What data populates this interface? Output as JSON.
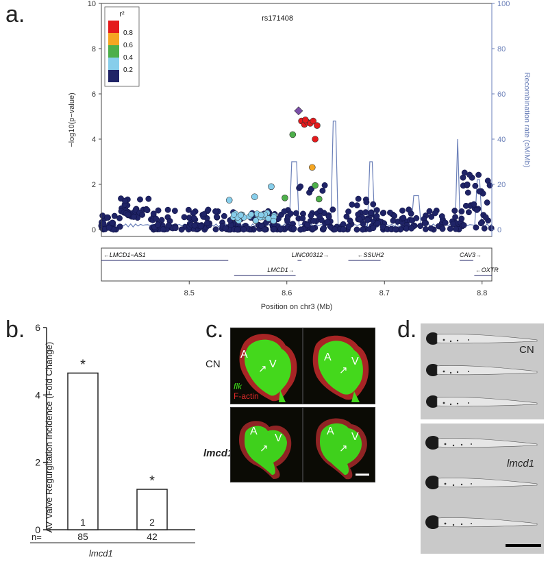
{
  "panels": {
    "a": "a.",
    "b": "b.",
    "c": "c.",
    "d": "d."
  },
  "chart_data": [
    {
      "panel": "a",
      "type": "scatter",
      "title": "rs171408",
      "xlabel": "Position on chr3 (Mb)",
      "ylabel": "−log10(p−value)",
      "ylabel_right": "Recombination rate (cM/Mb)",
      "xlim": [
        8.41,
        8.81
      ],
      "ylim": [
        0,
        10
      ],
      "ylim_right": [
        0,
        100
      ],
      "x_ticks": [
        "8.5",
        "8.6",
        "8.7",
        "8.8"
      ],
      "y_ticks": [
        "0",
        "2",
        "4",
        "6",
        "8",
        "10"
      ],
      "y_right_ticks": [
        "0",
        "20",
        "40",
        "60",
        "80",
        "100"
      ],
      "legend": {
        "title": "r²",
        "placement": "top-left",
        "bins": [
          {
            "label": "0.8",
            "color": "#e41a1c"
          },
          {
            "label": "0.6",
            "color": "#f5a623"
          },
          {
            "label": "0.4",
            "color": "#4daf4a"
          },
          {
            "label": "0.2",
            "color": "#87ceeb"
          },
          {
            "label": "",
            "color": "#1f2366"
          }
        ]
      },
      "lead_snp": {
        "x": 8.612,
        "y": 5.25,
        "color": "#7b4fa8"
      },
      "highlighted_points": [
        {
          "x": 8.615,
          "y": 4.8,
          "r2": "0.8"
        },
        {
          "x": 8.618,
          "y": 4.65,
          "r2": "0.8"
        },
        {
          "x": 8.621,
          "y": 4.75,
          "r2": "0.8"
        },
        {
          "x": 8.624,
          "y": 4.7,
          "r2": "0.8"
        },
        {
          "x": 8.627,
          "y": 4.8,
          "r2": "0.8"
        },
        {
          "x": 8.631,
          "y": 4.6,
          "r2": "0.8"
        },
        {
          "x": 8.619,
          "y": 4.85,
          "r2": "0.8"
        },
        {
          "x": 8.629,
          "y": 4.0,
          "r2": "0.8"
        },
        {
          "x": 8.626,
          "y": 2.75,
          "r2": "0.6"
        },
        {
          "x": 8.606,
          "y": 4.2,
          "r2": "0.4"
        },
        {
          "x": 8.629,
          "y": 1.95,
          "r2": "0.4"
        },
        {
          "x": 8.633,
          "y": 1.35,
          "r2": "0.4"
        },
        {
          "x": 8.598,
          "y": 1.4,
          "r2": "0.4"
        },
        {
          "x": 8.584,
          "y": 1.9,
          "r2": "0.2"
        },
        {
          "x": 8.567,
          "y": 1.45,
          "r2": "0.2"
        },
        {
          "x": 8.541,
          "y": 1.3,
          "r2": "0.2"
        }
      ],
      "genes": [
        {
          "label": "←LMCD1−AS1",
          "start": 8.41,
          "end": 8.54,
          "row": 0,
          "label_x": 8.412
        },
        {
          "label": "LINC00312→",
          "start": 8.611,
          "end": 8.615,
          "row": 0,
          "label_x": 8.605
        },
        {
          "label": "←SSUH2",
          "start": 8.663,
          "end": 8.696,
          "row": 0,
          "label_x": 8.672
        },
        {
          "label": "CAV3→",
          "start": 8.777,
          "end": 8.791,
          "row": 0,
          "label_x": 8.777
        },
        {
          "label": "LMCD1→",
          "start": 8.546,
          "end": 8.609,
          "row": 1,
          "label_x": 8.58
        },
        {
          "label": "←OXTR",
          "start": 8.792,
          "end": 8.81,
          "row": 1,
          "label_x": 8.793
        }
      ]
    },
    {
      "panel": "b",
      "type": "bar",
      "categories": [
        "1",
        "2"
      ],
      "values": [
        4.65,
        1.2
      ],
      "ylabel": "AV Valve Regurgitation Incidence (Fold Change)",
      "ylim": [
        0,
        6
      ],
      "y_ticks": [
        "0",
        "2",
        "4",
        "6"
      ],
      "significance": [
        "*",
        "*"
      ],
      "n_label": "n=",
      "n_values": [
        "85",
        "42"
      ],
      "group_label": "lmcd1"
    }
  ],
  "panel_c": {
    "row_labels": [
      "CN",
      "lmcd1"
    ],
    "chamber_labels": [
      "A",
      "V"
    ],
    "stain_labels": [
      "flk",
      "F-actin"
    ],
    "colors": {
      "green": "#3fe01a",
      "red": "#b32222"
    }
  },
  "panel_d": {
    "group_labels": [
      "CN",
      "lmcd1"
    ]
  }
}
